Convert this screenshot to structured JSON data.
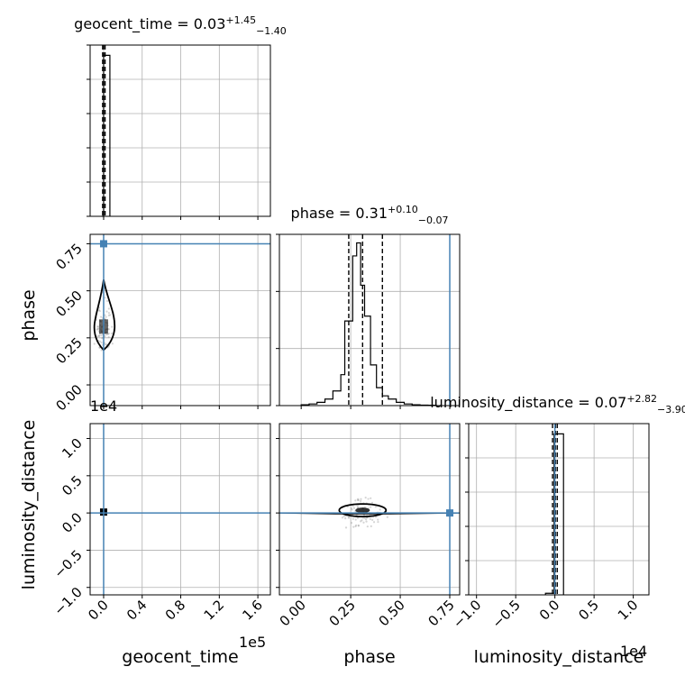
{
  "chart_data": {
    "type": "corner",
    "parameters": [
      "geocent_time",
      "phase",
      "luminosity_distance"
    ],
    "titles": [
      {
        "name": "geocent_time",
        "median": "0.03",
        "plus": "+1.45",
        "minus": "−1.40"
      },
      {
        "name": "phase",
        "median": "0.31",
        "plus": "+0.10",
        "minus": "−0.07"
      },
      {
        "name": "luminosity_distance",
        "median": "0.07",
        "plus": "+2.82",
        "minus": "−3.90"
      }
    ],
    "axis_labels": {
      "x": [
        "geocent_time",
        "phase",
        "luminosity_distance"
      ],
      "y": [
        "phase",
        "luminosity_distance"
      ]
    },
    "offsets": {
      "geocent_time": "1e5",
      "luminosity_distance": "1e4"
    },
    "ranges": {
      "geocent_time": [
        -0.14,
        1.73
      ],
      "phase": [
        -0.11,
        0.8
      ],
      "luminosity_distance": [
        -1.1,
        1.2
      ]
    },
    "ticks": {
      "geocent_time": [
        0.0,
        0.4,
        0.8,
        1.2,
        1.6
      ],
      "geocent_time_labels": [
        "0.0",
        "0.4",
        "0.8",
        "1.2",
        "1.6"
      ],
      "phase": [
        0.0,
        0.25,
        0.5,
        0.75
      ],
      "phase_labels": [
        "0.00",
        "0.25",
        "0.50",
        "0.75"
      ],
      "luminosity_distance": [
        -1.0,
        -0.5,
        0.0,
        0.5,
        1.0
      ],
      "luminosity_distance_labels": [
        "−1.0",
        "−0.5",
        "0.0",
        "0.5",
        "1.0"
      ]
    },
    "truths": {
      "geocent_time": 0.0,
      "phase": 0.75,
      "luminosity_distance": 0.0
    },
    "quantiles": {
      "geocent_time": [
        -0.01,
        0.0003,
        0.015
      ],
      "phase": [
        0.24,
        0.31,
        0.41
      ],
      "luminosity_distance": [
        -0.03,
        0.007,
        0.03
      ]
    },
    "histograms": {
      "geocent_time": {
        "edges": [
          -0.02,
          0.0,
          0.065
        ],
        "counts": [
          0.0,
          1.0
        ]
      },
      "phase": {
        "edges": [
          0.0,
          0.04,
          0.08,
          0.12,
          0.16,
          0.2,
          0.22,
          0.26,
          0.28,
          0.3,
          0.32,
          0.35,
          0.38,
          0.41,
          0.44,
          0.48,
          0.52,
          0.56,
          0.6,
          0.64,
          0.68
        ],
        "counts": [
          0.005,
          0.01,
          0.02,
          0.04,
          0.09,
          0.19,
          0.52,
          0.92,
          1.0,
          0.74,
          0.55,
          0.25,
          0.11,
          0.06,
          0.04,
          0.02,
          0.01,
          0.005,
          0.003,
          0.002
        ]
      },
      "luminosity_distance": {
        "edges": [
          -0.12,
          -0.01,
          0.11
        ],
        "counts": [
          0.01,
          1.0
        ]
      }
    },
    "grid": true,
    "color_truth": "#4682b4",
    "color_hist": "#000000"
  }
}
